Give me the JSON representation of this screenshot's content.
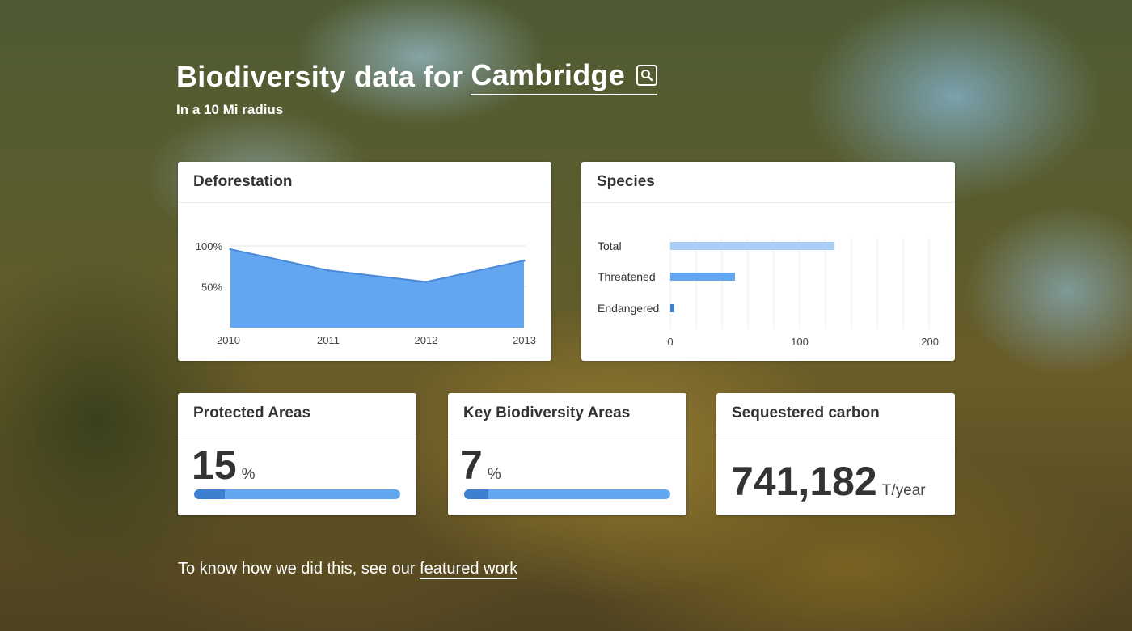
{
  "header": {
    "title_prefix": "Biodiversity data for",
    "city": "Cambridge",
    "search_icon": "search-icon",
    "subtitle": "In a 10 Mi radius"
  },
  "cards": {
    "deforestation": {
      "title": "Deforestation"
    },
    "species": {
      "title": "Species"
    },
    "protected": {
      "title": "Protected Areas",
      "value": "15",
      "unit": "%",
      "percent": 15
    },
    "kba": {
      "title": "Key Biodiversity Areas",
      "value": "7",
      "unit": "%",
      "percent": 7
    },
    "carbon": {
      "title": "Sequestered carbon",
      "value": "741,182",
      "unit": "T/year"
    }
  },
  "chart_data": [
    {
      "type": "area",
      "x": [
        "2010",
        "2011",
        "2012",
        "2013"
      ],
      "values": [
        96,
        70,
        56,
        82
      ],
      "y_ticks": [
        {
          "value": 100,
          "label": "100%"
        },
        {
          "value": 50,
          "label": "50%"
        }
      ],
      "ylim": [
        0,
        100
      ],
      "color": "#62a6f0",
      "line_color": "#4a88d8",
      "grid": true
    },
    {
      "type": "bar",
      "orientation": "horizontal",
      "categories": [
        "Total",
        "Threatened",
        "Endangered"
      ],
      "values": [
        127,
        50,
        3
      ],
      "colors": [
        "#a8cef5",
        "#62a6f0",
        "#3d7fd0"
      ],
      "xlim": [
        0,
        200
      ],
      "x_ticks": [
        0,
        100,
        200
      ],
      "grid": true
    }
  ],
  "footer": {
    "text": "To know how we did this, see our",
    "link": "featured work"
  }
}
